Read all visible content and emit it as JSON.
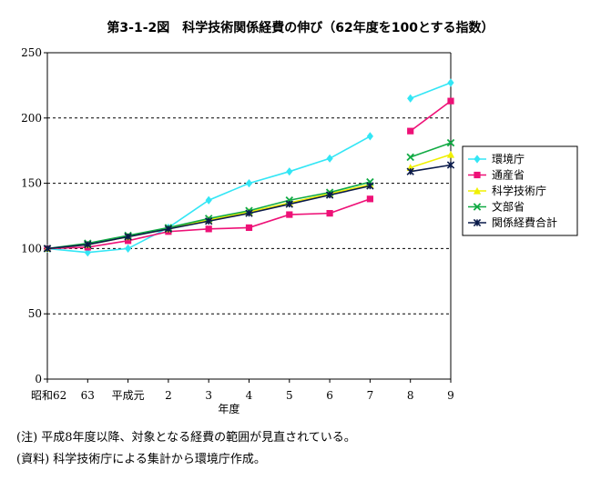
{
  "chart_data": {
    "type": "line",
    "title": "第3-1-2図　科学技術関係経費の伸び（62年度を100とする指数）",
    "xlabel": "年度",
    "ylabel": "",
    "categories": [
      "昭和62",
      "63",
      "平成元",
      "2",
      "3",
      "4",
      "5",
      "6",
      "7",
      "8",
      "9"
    ],
    "ylim": [
      0,
      250
    ],
    "yticks": [
      0,
      50,
      100,
      150,
      200,
      250
    ],
    "dashed_gridlines": [
      50,
      100,
      150,
      200
    ],
    "legend_position": "right",
    "break_after_index": 8,
    "series": [
      {
        "name": "環境庁",
        "color": "#33e6f5",
        "marker": "diamond",
        "values": [
          100,
          97,
          100,
          116,
          137,
          150,
          159,
          169,
          186,
          215,
          227
        ]
      },
      {
        "name": "通産省",
        "color": "#ee1177",
        "marker": "square",
        "values": [
          100,
          101,
          106,
          113,
          115,
          116,
          126,
          127,
          138,
          190,
          213
        ]
      },
      {
        "name": "科学技術庁",
        "color": "#f0f000",
        "marker": "triangle",
        "values": [
          100,
          103,
          109,
          115,
          122,
          128,
          135,
          142,
          149,
          162,
          172
        ]
      },
      {
        "name": "文部省",
        "color": "#11aa44",
        "marker": "x",
        "values": [
          100,
          104,
          110,
          116,
          123,
          129,
          137,
          143,
          151,
          170,
          181
        ]
      },
      {
        "name": "関係経費合計",
        "color": "#0a1a4a",
        "marker": "star",
        "values": [
          100,
          103,
          109,
          115,
          121,
          127,
          134,
          141,
          148,
          159,
          164
        ]
      }
    ]
  },
  "notes": {
    "line1": "(注) 平成8年度以降、対象となる経費の範囲が見直されている。",
    "line2": "(資料) 科学技術庁による集計から環境庁作成。"
  }
}
